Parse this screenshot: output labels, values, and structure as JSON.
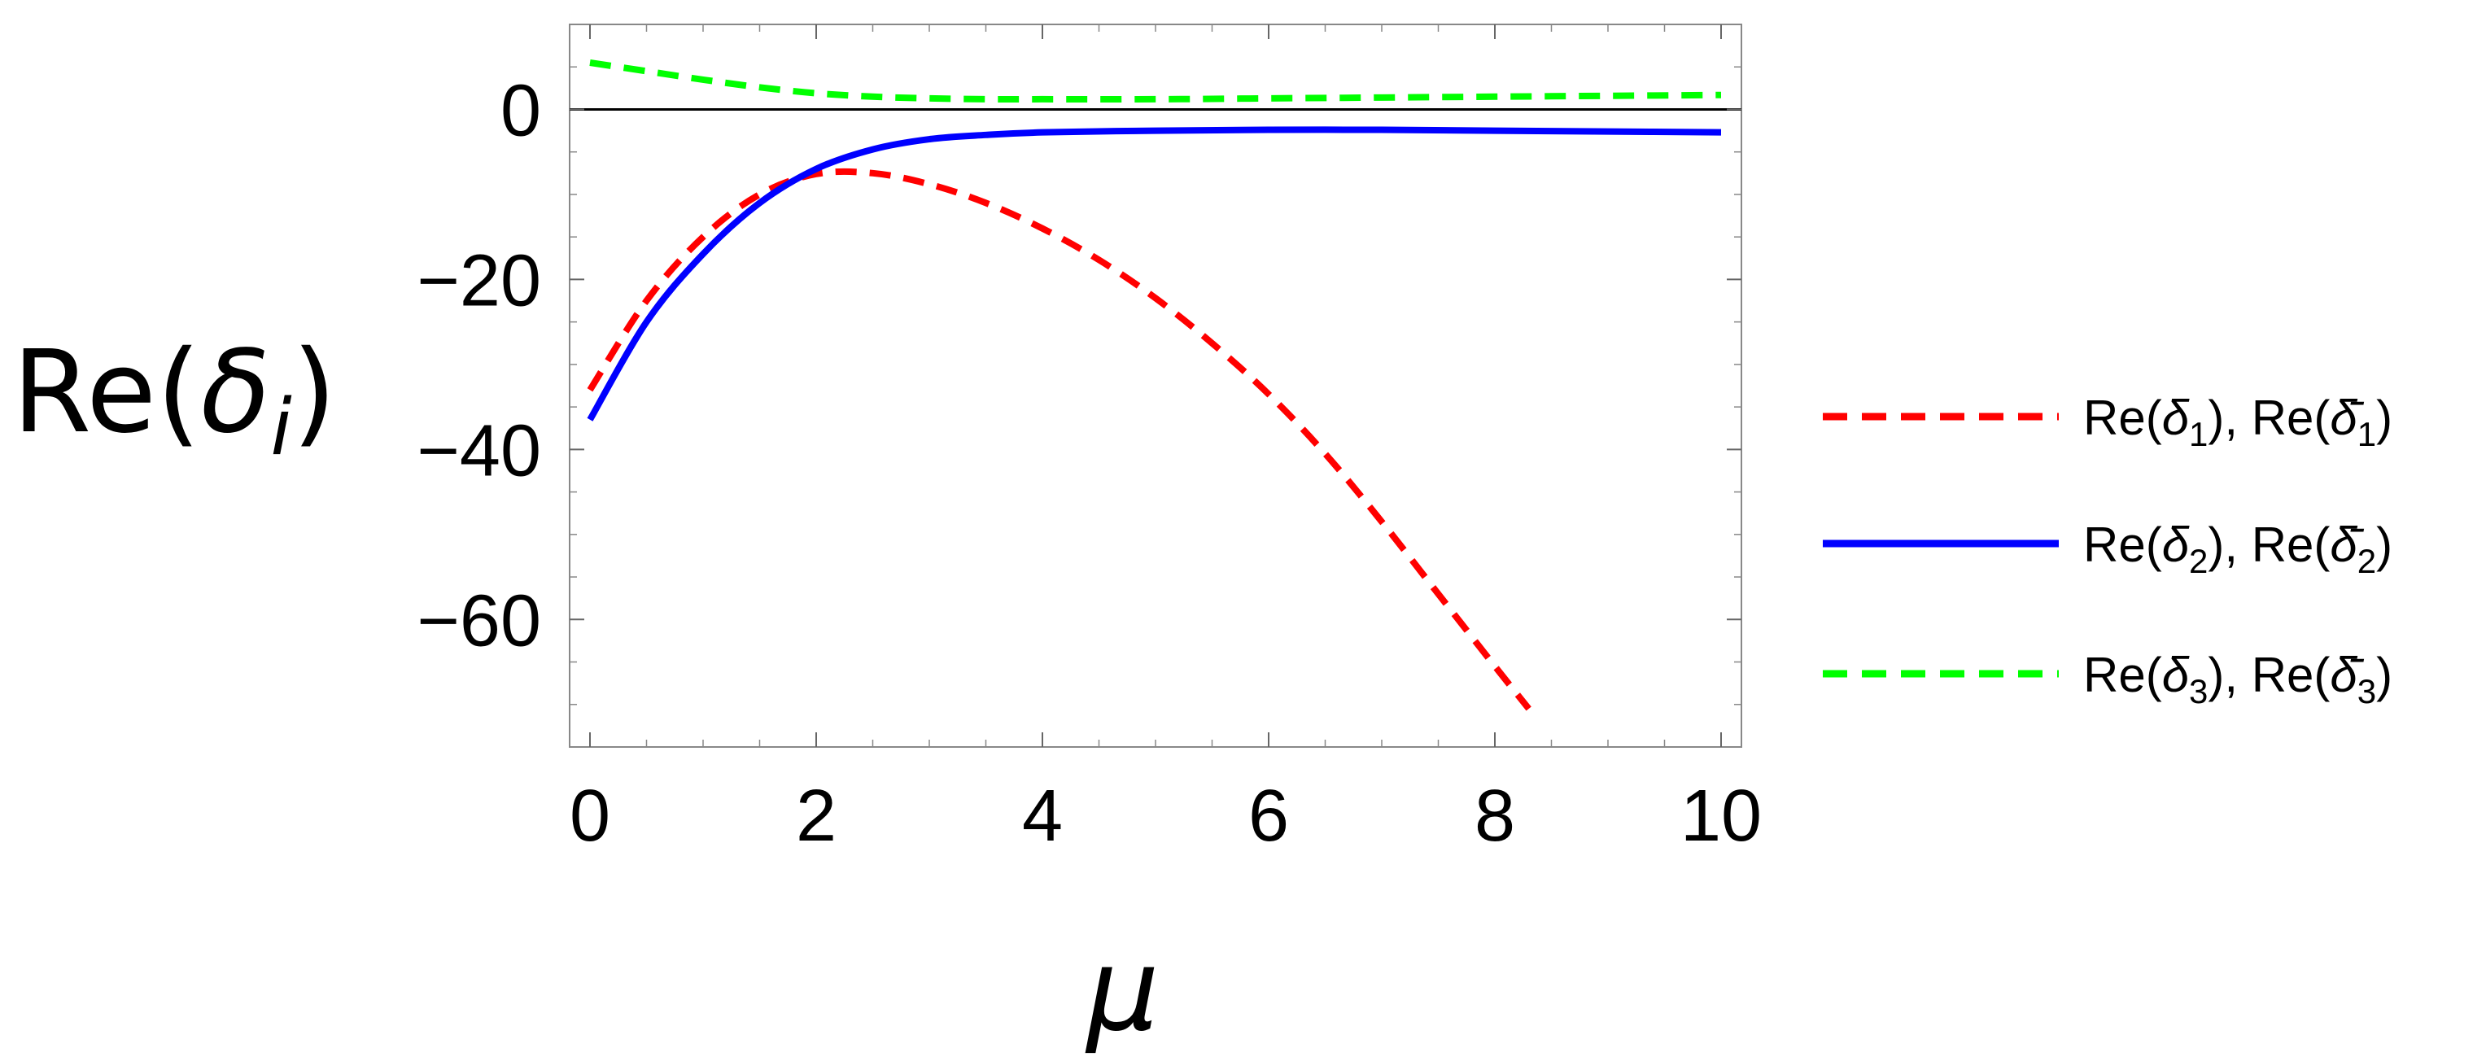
{
  "chart_data": {
    "type": "line",
    "title": "",
    "xlabel": "μ",
    "ylabel": "Re(δ_i)",
    "ylabel_parts": {
      "prefix": "Re(",
      "symbol": "δ",
      "sub": "i",
      "suffix": ")"
    },
    "xlim": [
      0,
      10
    ],
    "ylim": [
      -75,
      10
    ],
    "xticks": [
      0,
      2,
      4,
      6,
      8,
      10
    ],
    "xtick_labels": [
      "0",
      "2",
      "4",
      "6",
      "8",
      "10"
    ],
    "yticks": [
      0,
      -20,
      -40,
      -60
    ],
    "ytick_labels": [
      "0",
      "−20",
      "−40",
      "−60"
    ],
    "grid": false,
    "zero_line": true,
    "legend_position": "right",
    "series": [
      {
        "name": "Re(δ1), Re(δ̄1)",
        "label_index": "1",
        "color": "#ff0000",
        "style": "dashed",
        "x": [
          0,
          0.5,
          1,
          1.5,
          2,
          2.5,
          3,
          3.5,
          4,
          4.5,
          5,
          5.5,
          6,
          6.5,
          7,
          7.5,
          8,
          8.3
        ],
        "y": [
          -33,
          -22.5,
          -15,
          -10,
          -7.6,
          -7.5,
          -8.8,
          -11,
          -14,
          -17.7,
          -22.2,
          -27.5,
          -33.5,
          -40.5,
          -48.5,
          -57,
          -65.5,
          -70.5
        ]
      },
      {
        "name": "Re(δ2), Re(δ̄2)",
        "label_index": "2",
        "color": "#0000ff",
        "style": "solid",
        "x": [
          0,
          0.5,
          1,
          1.5,
          2,
          2.5,
          3,
          3.5,
          4,
          5,
          6,
          7,
          8,
          9,
          10
        ],
        "y": [
          -36.5,
          -25,
          -17,
          -11,
          -7,
          -4.7,
          -3.5,
          -3,
          -2.7,
          -2.5,
          -2.4,
          -2.4,
          -2.5,
          -2.6,
          -2.7
        ]
      },
      {
        "name": "Re(δ3), Re(δ̄3)",
        "label_index": "3",
        "color": "#00ff00",
        "style": "dashed",
        "x": [
          0,
          0.5,
          1,
          1.5,
          2,
          2.5,
          3,
          3.5,
          4,
          5,
          6,
          7,
          8,
          9,
          10
        ],
        "y": [
          5.5,
          4.5,
          3.5,
          2.6,
          1.9,
          1.5,
          1.3,
          1.2,
          1.2,
          1.2,
          1.3,
          1.4,
          1.5,
          1.6,
          1.7
        ]
      }
    ]
  }
}
